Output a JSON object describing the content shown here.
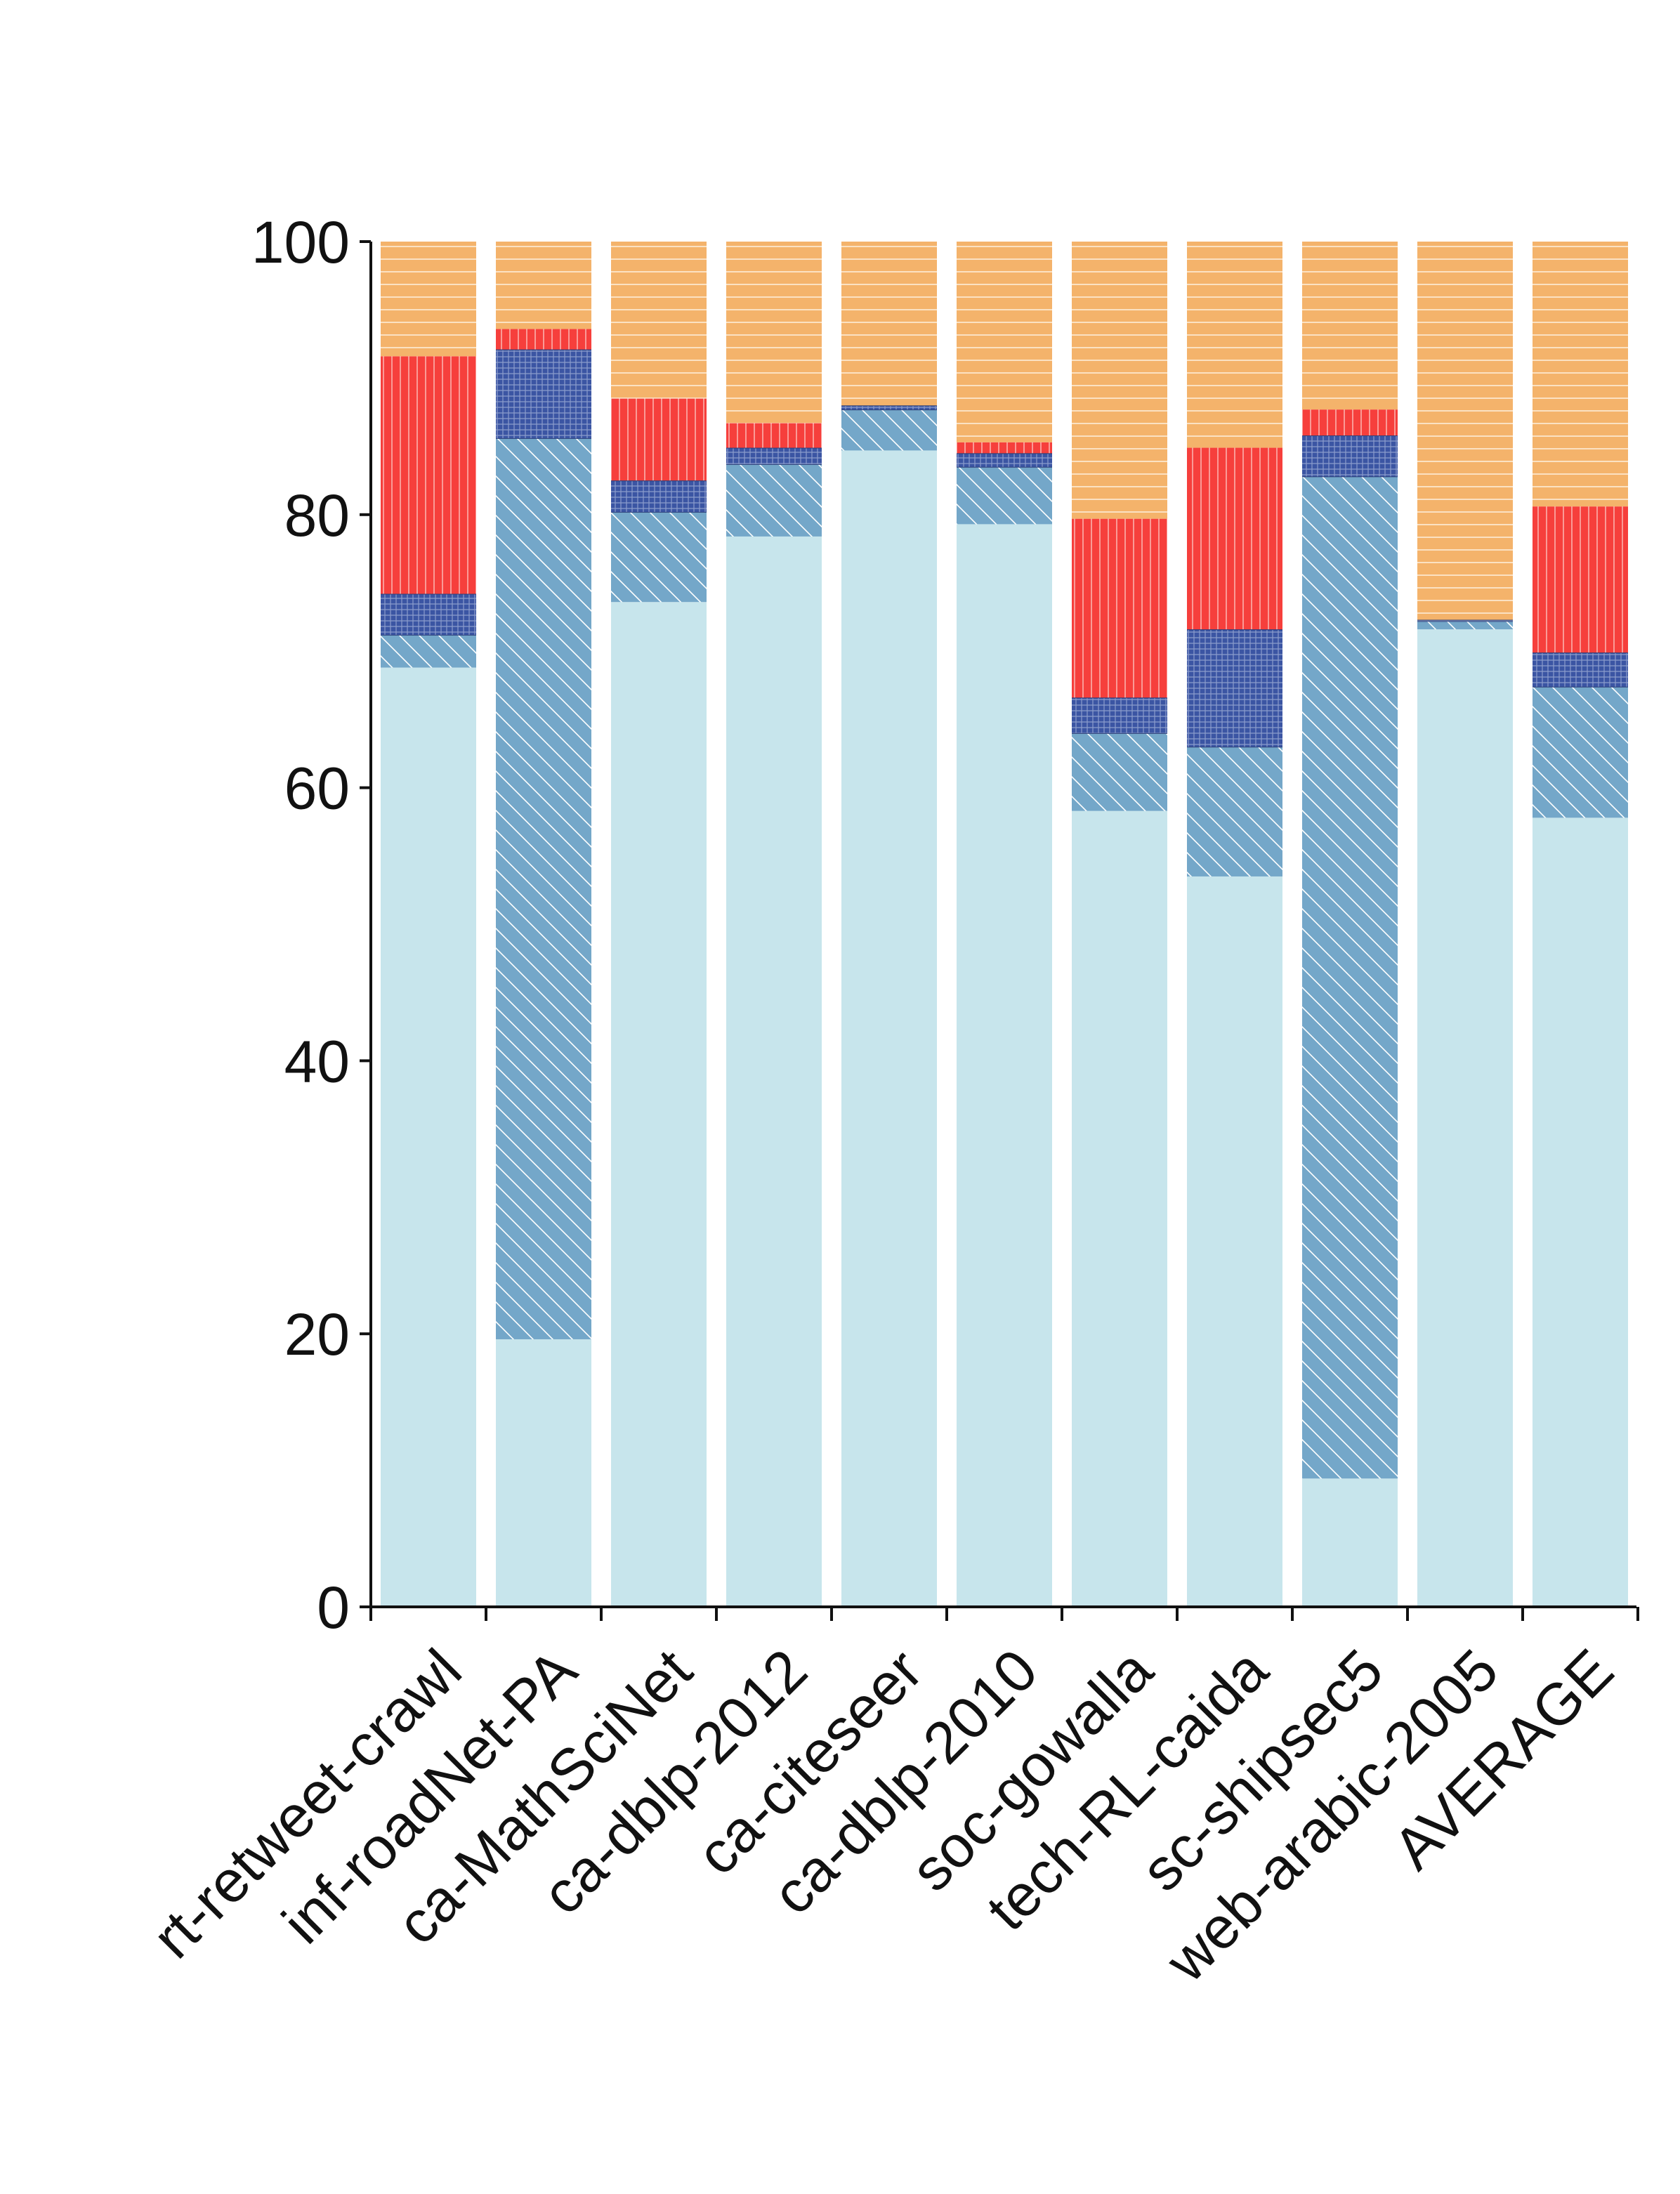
{
  "chart_data": {
    "type": "bar",
    "stacked": true,
    "categories": [
      "rt-retweet-crawl",
      "inf-roadNet-PA",
      "ca-MathSciNet",
      "ca-dblp-2012",
      "ca-citeseer",
      "ca-dblp-2010",
      "soc-gowalla",
      "tech-RL-caida",
      "sc-shipsec5",
      "web-arabic-2005",
      "AVERAGE"
    ],
    "series": [
      {
        "color": "#c7e5ec",
        "pattern": "solid",
        "values": [
          68.8,
          19.6,
          73.6,
          78.4,
          84.7,
          79.3,
          58.3,
          53.5,
          9.4,
          71.6,
          57.8
        ]
      },
      {
        "color": "#74a7c9",
        "pattern": "diagonal",
        "values": [
          2.4,
          66.0,
          6.6,
          5.3,
          3.0,
          4.2,
          5.7,
          9.5,
          73.4,
          0.6,
          9.6
        ]
      },
      {
        "color": "#3b55a3",
        "pattern": "crosshatch",
        "values": [
          3.0,
          6.5,
          2.3,
          1.2,
          0.3,
          1.0,
          2.6,
          8.6,
          3.0,
          0.1,
          2.5
        ]
      },
      {
        "color": "#f63f3c",
        "pattern": "vertical",
        "values": [
          17.4,
          1.5,
          6.0,
          1.8,
          0.0,
          0.8,
          13.1,
          13.3,
          1.9,
          0.0,
          10.7
        ]
      },
      {
        "color": "#f4b36b",
        "pattern": "horizontal",
        "values": [
          8.4,
          6.4,
          11.5,
          13.3,
          12.0,
          14.7,
          20.3,
          15.1,
          12.3,
          27.7,
          19.4
        ]
      }
    ],
    "yticks": [
      "0",
      "20",
      "40",
      "60",
      "80",
      "100"
    ],
    "ylim": [
      0,
      100
    ],
    "xlabel": "",
    "ylabel": "",
    "title": "",
    "grid": false
  }
}
